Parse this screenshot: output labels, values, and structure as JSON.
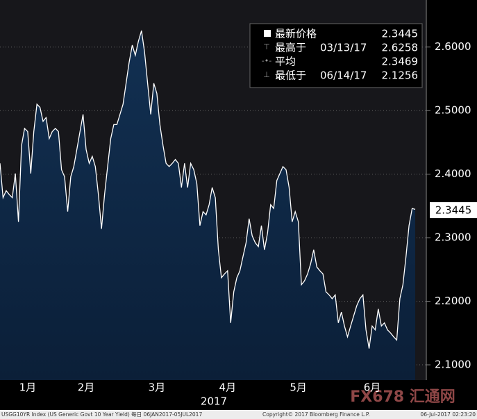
{
  "chart_data": {
    "type": "area",
    "values": [
      2.417,
      2.363,
      2.374,
      2.368,
      2.363,
      2.401,
      2.325,
      2.445,
      2.472,
      2.467,
      2.401,
      2.467,
      2.51,
      2.505,
      2.483,
      2.489,
      2.456,
      2.467,
      2.472,
      2.467,
      2.407,
      2.396,
      2.341,
      2.396,
      2.412,
      2.439,
      2.467,
      2.494,
      2.439,
      2.417,
      2.428,
      2.412,
      2.368,
      2.314,
      2.368,
      2.412,
      2.456,
      2.478,
      2.478,
      2.494,
      2.51,
      2.543,
      2.576,
      2.603,
      2.587,
      2.609,
      2.6258,
      2.592,
      2.543,
      2.494,
      2.543,
      2.527,
      2.478,
      2.445,
      2.417,
      2.412,
      2.417,
      2.423,
      2.417,
      2.379,
      2.417,
      2.379,
      2.417,
      2.407,
      2.385,
      2.319,
      2.341,
      2.336,
      2.352,
      2.379,
      2.363,
      2.281,
      2.237,
      2.243,
      2.248,
      2.166,
      2.215,
      2.237,
      2.248,
      2.27,
      2.292,
      2.33,
      2.303,
      2.292,
      2.286,
      2.319,
      2.281,
      2.308,
      2.352,
      2.346,
      2.39,
      2.401,
      2.412,
      2.407,
      2.379,
      2.325,
      2.341,
      2.325,
      2.226,
      2.232,
      2.243,
      2.259,
      2.281,
      2.254,
      2.248,
      2.243,
      2.215,
      2.21,
      2.204,
      2.21,
      2.166,
      2.183,
      2.161,
      2.144,
      2.161,
      2.177,
      2.193,
      2.204,
      2.21,
      2.155,
      2.1256,
      2.161,
      2.155,
      2.188,
      2.161,
      2.166,
      2.155,
      2.15,
      2.144,
      2.139,
      2.204,
      2.226,
      2.27,
      2.319,
      2.346,
      2.3445
    ],
    "color": "#123052",
    "line_color": "#ffffff",
    "ylim": [
      2.076,
      2.674
    ],
    "yticks": [
      {
        "value": 2.1,
        "label": "2.1000"
      },
      {
        "value": 2.2,
        "label": "2.2000"
      },
      {
        "value": 2.3,
        "label": "2.3000"
      },
      {
        "value": 2.4,
        "label": "2.4000"
      },
      {
        "value": 2.5,
        "label": "2.5000"
      },
      {
        "value": 2.6,
        "label": "2.6000"
      }
    ],
    "xticks": [
      {
        "value": 9,
        "label": "1月"
      },
      {
        "value": 28,
        "label": "2月"
      },
      {
        "value": 51,
        "label": "3月"
      },
      {
        "value": 74,
        "label": "4月"
      },
      {
        "value": 97,
        "label": "5月"
      },
      {
        "value": 121,
        "label": "6月"
      }
    ],
    "xlabel": "2017",
    "grid": true,
    "legend": [
      {
        "name": "最新价格",
        "value": 2.3445
      },
      {
        "name": "最高于",
        "date": "03/13/17",
        "value": 2.6258
      },
      {
        "name": "平均",
        "value": 2.3469
      },
      {
        "name": "最低于",
        "date": "06/14/17",
        "value": 2.1256
      }
    ],
    "footer": {
      "left": "USGG10YR Index (US Generic Govt 10 Year Yield)  每日 06JAN2017-05JUL2017",
      "middle": "Copyright© 2017 Bloomberg Finance L.P.",
      "right": "06-Jul-2017 02:23:20"
    },
    "watermark": "FX678 汇通网"
  }
}
